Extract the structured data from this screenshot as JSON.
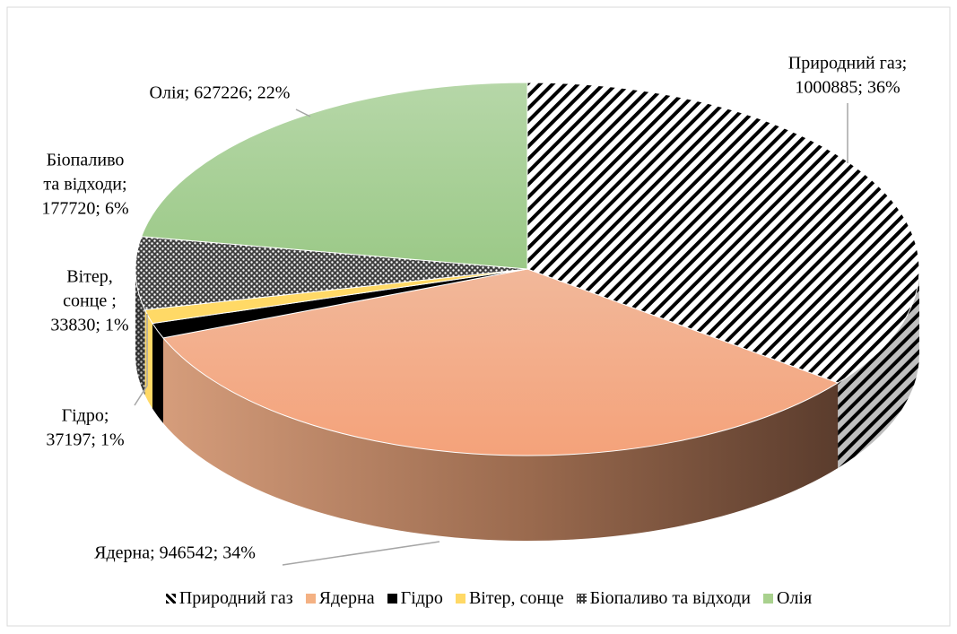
{
  "chart_data": {
    "type": "pie3d",
    "categories": [
      "Природний газ",
      "Ядерна",
      "Гідро",
      "Вітер, сонце",
      "Біопаливо та відходи",
      "Олія"
    ],
    "values": [
      1000885,
      946542,
      37197,
      33830,
      177720,
      627226
    ],
    "value_labels": [
      [
        "Природний газ;",
        "1000885; 36%"
      ],
      [
        "Ядерна; 946542; 34%"
      ],
      [
        "Гідро;",
        "37197; 1%"
      ],
      [
        "Вітер,",
        "сонце ;",
        "33830; 1%"
      ],
      [
        "Біопаливо",
        "та відходи;",
        "177720; 6%"
      ],
      [
        "Олія; 627226; 22%"
      ]
    ],
    "colors": [
      "#000000",
      "#f4b183",
      "#000000",
      "#ffd966",
      "#404040",
      "#a9d18e"
    ],
    "patterns": [
      "stripes",
      null,
      null,
      null,
      "dots",
      null
    ],
    "legend": "bottom"
  }
}
